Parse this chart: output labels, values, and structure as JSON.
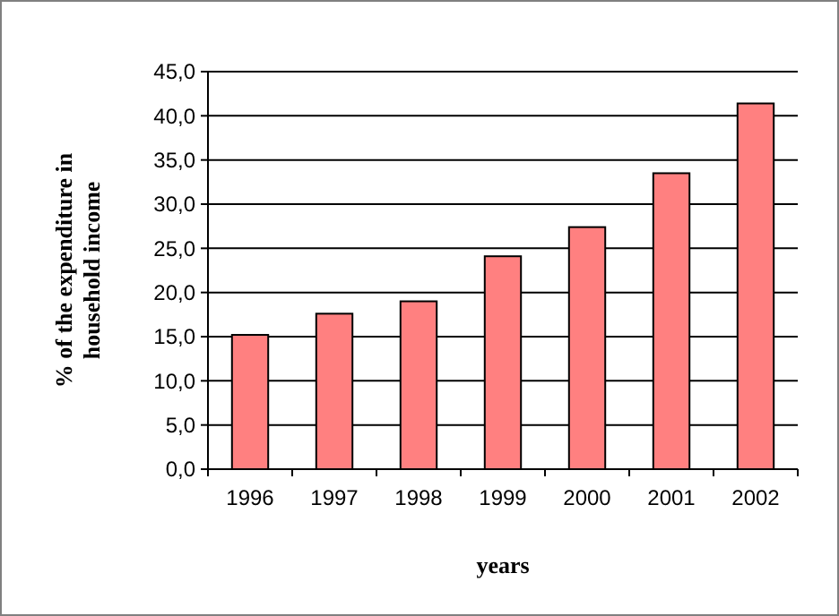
{
  "chart_data": {
    "type": "bar",
    "xlabel": "years",
    "ylabel": "% of the expenditure in household income",
    "categories": [
      "1996",
      "1997",
      "1998",
      "1999",
      "2000",
      "2001",
      "2002"
    ],
    "values": [
      15.2,
      17.6,
      19.0,
      24.1,
      27.4,
      33.5,
      41.4
    ],
    "color": "#ff8080",
    "ylim": [
      0,
      45
    ],
    "yticks": [
      {
        "value": 0,
        "label": "0,0"
      },
      {
        "value": 5,
        "label": "5,0"
      },
      {
        "value": 10,
        "label": "10,0"
      },
      {
        "value": 15,
        "label": "15,0"
      },
      {
        "value": 20,
        "label": "20,0"
      },
      {
        "value": 25,
        "label": "25,0"
      },
      {
        "value": 30,
        "label": "30,0"
      },
      {
        "value": 35,
        "label": "35,0"
      },
      {
        "value": 40,
        "label": "40,0"
      },
      {
        "value": 45,
        "label": "45,0"
      }
    ],
    "grid": "y"
  }
}
